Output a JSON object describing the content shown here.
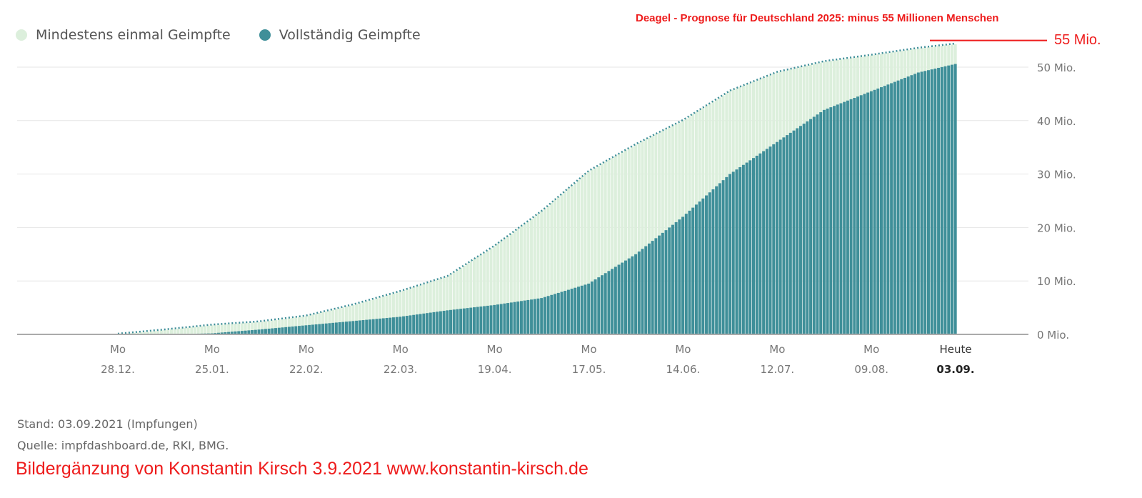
{
  "chart_data": {
    "type": "area",
    "legend_placement": "top-left",
    "series": [
      {
        "name": "Mindestens einmal Geimpfte",
        "color": "#dcefdc",
        "values": [
          0,
          0.8,
          1.7,
          2.3,
          3.4,
          5.5,
          8.0,
          10.8,
          16.5,
          23.0,
          30.5,
          35.5,
          40.0,
          45.5,
          49.0,
          51.0,
          52.2,
          53.5,
          54.3
        ]
      },
      {
        "name": "Vollständig Geimpfte",
        "color": "#3f8f99",
        "values": [
          0,
          0,
          0.2,
          0.9,
          1.7,
          2.5,
          3.3,
          4.5,
          5.5,
          6.8,
          9.5,
          15.0,
          22.0,
          30.0,
          36.0,
          42.0,
          45.5,
          49.0,
          50.6
        ]
      }
    ],
    "x": [
      "2020-12-28",
      "2021-01-11",
      "2021-01-25",
      "2021-02-08",
      "2021-02-22",
      "2021-03-08",
      "2021-03-22",
      "2021-04-05",
      "2021-04-19",
      "2021-05-03",
      "2021-05-17",
      "2021-05-31",
      "2021-06-14",
      "2021-06-28",
      "2021-07-12",
      "2021-07-26",
      "2021-08-09",
      "2021-08-23",
      "2021-09-03"
    ],
    "ylim": [
      0,
      55
    ],
    "y_ticks": [
      {
        "value": 0,
        "label": "0 Mio."
      },
      {
        "value": 10,
        "label": "10 Mio."
      },
      {
        "value": 20,
        "label": "20 Mio."
      },
      {
        "value": 30,
        "label": "30 Mio."
      },
      {
        "value": 40,
        "label": "40 Mio."
      },
      {
        "value": 50,
        "label": "50 Mio."
      }
    ],
    "x_ticks": [
      {
        "date": "2020-12-28",
        "top": "Mo",
        "bottom": "28.12."
      },
      {
        "date": "2021-01-25",
        "top": "Mo",
        "bottom": "25.01."
      },
      {
        "date": "2021-02-22",
        "top": "Mo",
        "bottom": "22.02."
      },
      {
        "date": "2021-03-22",
        "top": "Mo",
        "bottom": "22.03."
      },
      {
        "date": "2021-04-19",
        "top": "Mo",
        "bottom": "19.04."
      },
      {
        "date": "2021-05-17",
        "top": "Mo",
        "bottom": "17.05."
      },
      {
        "date": "2021-06-14",
        "top": "Mo",
        "bottom": "14.06."
      },
      {
        "date": "2021-07-12",
        "top": "Mo",
        "bottom": "12.07."
      },
      {
        "date": "2021-08-09",
        "top": "Mo",
        "bottom": "09.08."
      },
      {
        "date": "2021-09-03",
        "top": "Heute",
        "bottom": "03.09."
      }
    ],
    "grid": true,
    "annotation": {
      "title": "Deagel - Prognose für Deutschland 2025: minus 55 Millionen Menschen",
      "line_value": 55,
      "line_label": "55 Mio.",
      "color": "#ee1c1c"
    }
  },
  "footer": {
    "stand": "Stand: 03.09.2021 (Impfungen)",
    "quelle": "Quelle: impfdashboard.de, RKI, BMG.",
    "credit": "Bildergänzung von Konstantin Kirsch 3.9.2021 www.konstantin-kirsch.de"
  }
}
